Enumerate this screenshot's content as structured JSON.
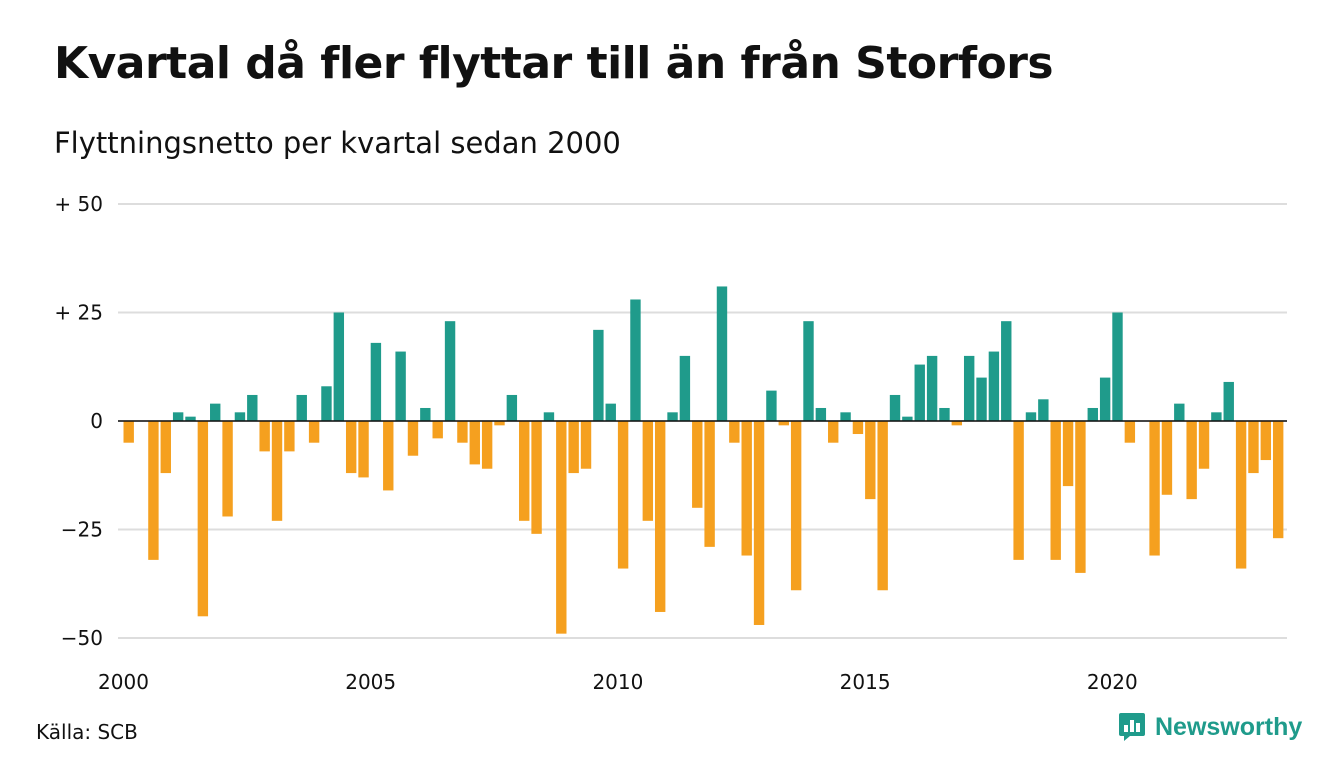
{
  "title": "Kvartal då fler flyttar till än från Storfors",
  "subtitle": "Flyttningsnetto per kvartal sedan 2000",
  "source": "Källa: SCB",
  "brand": {
    "name": "Newsworthy",
    "icon": "bar-chart-speech-bubble-icon"
  },
  "colors": {
    "positive": "#1f9b8b",
    "negative": "#f5a01f",
    "grid": "#dddddd",
    "text": "#111111"
  },
  "chart_data": {
    "type": "bar",
    "x_start": "2000 Q1",
    "quarters_per_year": 4,
    "ylim": [
      -50,
      50
    ],
    "y_ticks": [
      {
        "value": 50,
        "label": "+ 50"
      },
      {
        "value": 25,
        "label": "+ 25"
      },
      {
        "value": 0,
        "label": "0"
      },
      {
        "value": -25,
        "label": "−25"
      },
      {
        "value": -50,
        "label": "−50"
      }
    ],
    "x_ticks": [
      "2000",
      "2005",
      "2010",
      "2015",
      "2020"
    ],
    "grid": true,
    "values": [
      -5,
      0,
      -32,
      -12,
      2,
      1,
      -45,
      4,
      -22,
      2,
      6,
      -7,
      -23,
      -7,
      6,
      -5,
      8,
      25,
      -12,
      -13,
      18,
      -16,
      16,
      -8,
      3,
      -4,
      23,
      -5,
      -10,
      -11,
      -1,
      6,
      -23,
      -26,
      2,
      -49,
      -12,
      -11,
      21,
      4,
      -34,
      28,
      -23,
      -44,
      2,
      15,
      -20,
      -29,
      31,
      -5,
      -31,
      -47,
      7,
      -1,
      -39,
      23,
      3,
      -5,
      2,
      -3,
      -18,
      -39,
      6,
      1,
      13,
      15,
      3,
      -1,
      15,
      10,
      16,
      23,
      -32,
      2,
      5,
      -32,
      -15,
      -35,
      3,
      10,
      25,
      -5,
      0,
      -31,
      -17,
      4,
      -18,
      -11,
      2,
      9,
      -34,
      -12,
      -9,
      -27
    ]
  }
}
